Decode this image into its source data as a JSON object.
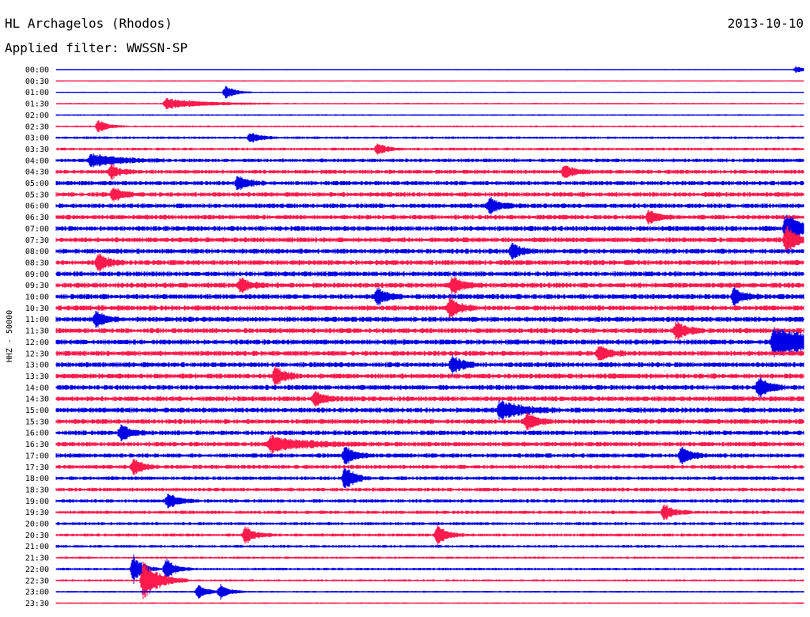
{
  "header": {
    "station": "HL Archagelos (Rhodos)",
    "date": "2013-10-10",
    "filter_prefix": "Applied filter: ",
    "filter_name": "WWSSN-SP"
  },
  "chart_data": {
    "type": "line",
    "title": "HL Archagelos (Rhodos)",
    "ylabel": "HHZ - 50000",
    "x_range_minutes": [
      0,
      30
    ],
    "row_labels": [
      "00:00",
      "00:30",
      "01:00",
      "01:30",
      "02:00",
      "02:30",
      "03:00",
      "03:30",
      "04:00",
      "04:30",
      "05:00",
      "05:30",
      "06:00",
      "06:30",
      "07:00",
      "07:30",
      "08:00",
      "08:30",
      "09:00",
      "09:30",
      "10:00",
      "10:30",
      "11:00",
      "11:30",
      "12:00",
      "12:30",
      "13:00",
      "13:30",
      "14:00",
      "14:30",
      "15:00",
      "15:30",
      "16:00",
      "16:30",
      "17:00",
      "17:30",
      "18:00",
      "18:30",
      "19:00",
      "19:30",
      "20:00",
      "20:30",
      "21:00",
      "21:30",
      "22:00",
      "22:30",
      "23:00",
      "23:30"
    ],
    "trace_colors": [
      "#0000e6",
      "#ff1a4d"
    ],
    "noise_level": [
      0.6,
      0.8,
      0.8,
      1.0,
      1.0,
      1.2,
      1.6,
      1.8,
      2.4,
      2.6,
      2.8,
      3.0,
      3.0,
      3.0,
      3.2,
      3.2,
      3.2,
      3.2,
      3.3,
      3.3,
      3.3,
      3.3,
      3.3,
      3.3,
      3.3,
      3.3,
      3.3,
      3.3,
      3.2,
      3.2,
      3.2,
      3.1,
      3.0,
      3.0,
      2.8,
      2.6,
      2.4,
      2.4,
      2.3,
      2.2,
      2.0,
      2.0,
      1.8,
      1.6,
      1.6,
      1.4,
      1.2,
      1.0
    ],
    "events": [
      {
        "row": 0,
        "minute": 29.7,
        "amp": 4
      },
      {
        "row": 2,
        "minute": 6.8,
        "amp": 9
      },
      {
        "row": 3,
        "minute": 4.4,
        "amp": 7,
        "dur": 1.4
      },
      {
        "row": 5,
        "minute": 1.7,
        "amp": 8
      },
      {
        "row": 6,
        "minute": 7.8,
        "amp": 7
      },
      {
        "row": 7,
        "minute": 12.9,
        "amp": 7
      },
      {
        "row": 8,
        "minute": 1.4,
        "amp": 8,
        "dur": 1.0
      },
      {
        "row": 9,
        "minute": 2.2,
        "amp": 9
      },
      {
        "row": 9,
        "minute": 20.4,
        "amp": 9
      },
      {
        "row": 10,
        "minute": 7.3,
        "amp": 10
      },
      {
        "row": 11,
        "minute": 2.3,
        "amp": 9
      },
      {
        "row": 12,
        "minute": 17.4,
        "amp": 11
      },
      {
        "row": 13,
        "minute": 23.8,
        "amp": 9
      },
      {
        "row": 14,
        "minute": 29.3,
        "amp": 20,
        "dur": 0.6
      },
      {
        "row": 15,
        "minute": 29.3,
        "amp": 18
      },
      {
        "row": 16,
        "minute": 18.3,
        "amp": 10
      },
      {
        "row": 17,
        "minute": 1.7,
        "amp": 12
      },
      {
        "row": 19,
        "minute": 7.4,
        "amp": 10
      },
      {
        "row": 19,
        "minute": 15.9,
        "amp": 12
      },
      {
        "row": 20,
        "minute": 12.9,
        "amp": 11
      },
      {
        "row": 20,
        "minute": 27.2,
        "amp": 11
      },
      {
        "row": 21,
        "minute": 15.8,
        "amp": 14
      },
      {
        "row": 22,
        "minute": 1.6,
        "amp": 10
      },
      {
        "row": 23,
        "minute": 24.9,
        "amp": 12
      },
      {
        "row": 24,
        "minute": 28.8,
        "amp": 18,
        "dur": 1.7
      },
      {
        "row": 25,
        "minute": 21.8,
        "amp": 10
      },
      {
        "row": 26,
        "minute": 15.9,
        "amp": 12
      },
      {
        "row": 27,
        "minute": 8.8,
        "amp": 12
      },
      {
        "row": 28,
        "minute": 28.2,
        "amp": 14
      },
      {
        "row": 29,
        "minute": 10.4,
        "amp": 10
      },
      {
        "row": 30,
        "minute": 17.8,
        "amp": 12,
        "dur": 0.8
      },
      {
        "row": 31,
        "minute": 18.9,
        "amp": 12
      },
      {
        "row": 32,
        "minute": 2.6,
        "amp": 10
      },
      {
        "row": 33,
        "minute": 8.6,
        "amp": 10,
        "dur": 1.2
      },
      {
        "row": 34,
        "minute": 11.6,
        "amp": 12
      },
      {
        "row": 34,
        "minute": 25.1,
        "amp": 12
      },
      {
        "row": 35,
        "minute": 3.1,
        "amp": 10
      },
      {
        "row": 36,
        "minute": 11.6,
        "amp": 16
      },
      {
        "row": 38,
        "minute": 4.5,
        "amp": 10
      },
      {
        "row": 39,
        "minute": 24.4,
        "amp": 10
      },
      {
        "row": 41,
        "minute": 7.6,
        "amp": 12
      },
      {
        "row": 41,
        "minute": 15.3,
        "amp": 12
      },
      {
        "row": 44,
        "minute": 3.1,
        "amp": 18
      },
      {
        "row": 44,
        "minute": 4.4,
        "amp": 14
      },
      {
        "row": 45,
        "minute": 3.5,
        "amp": 26,
        "dur": 0.6
      },
      {
        "row": 46,
        "minute": 5.7,
        "amp": 9
      },
      {
        "row": 46,
        "minute": 6.6,
        "amp": 9
      }
    ]
  }
}
